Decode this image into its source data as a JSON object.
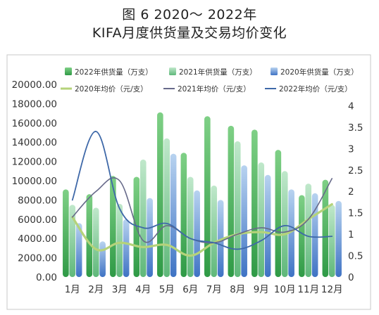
{
  "title": {
    "line1": "图 6  2020～ 2022年",
    "line2": "KIFA月度供货量及交易均价变化"
  },
  "chart_data": {
    "type": "bar",
    "categories": [
      "1月",
      "2月",
      "3月",
      "4月",
      "5月",
      "6月",
      "7月",
      "8月",
      "9月",
      "10月",
      "11月",
      "12月"
    ],
    "y_left": {
      "ylim": [
        0,
        20000
      ],
      "ticks": [
        "0.00",
        "2000.00",
        "4000.00",
        "6000.00",
        "8000.00",
        "10000.00",
        "12000.00",
        "14000.00",
        "16000.00",
        "18000.00",
        "20000.00"
      ]
    },
    "y_right": {
      "ylim": [
        0,
        4.5
      ],
      "ticks": [
        "0",
        "0.5",
        "1",
        "1.5",
        "2",
        "2.5",
        "3",
        "3.5",
        "4"
      ]
    },
    "bar_series": [
      {
        "name": "2022年供货量（万支）",
        "color": "#4fb858",
        "values": [
          9100,
          8600,
          10500,
          10400,
          17100,
          12900,
          16700,
          15700,
          15300,
          13200,
          8500,
          10100
        ]
      },
      {
        "name": "2021年供货量（万支）",
        "color": "#82cc96",
        "values": [
          7500,
          7200,
          7600,
          12200,
          14400,
          10400,
          9500,
          14100,
          11900,
          11000,
          9700,
          7500
        ]
      },
      {
        "name": "2020年供货量（万支）",
        "color": "#6d9ad8",
        "values": [
          5600,
          3700,
          6000,
          8200,
          12800,
          9000,
          8000,
          11600,
          10600,
          9100,
          8700,
          7900
        ]
      }
    ],
    "line_series": [
      {
        "name": "2020年均价（元/支）",
        "color": "#b5d37a",
        "values": [
          1.4,
          0.65,
          0.8,
          0.7,
          0.75,
          0.5,
          0.8,
          1.0,
          1.05,
          1.0,
          1.35,
          1.7
        ]
      },
      {
        "name": "2021年均价（元/支）",
        "color": "#676a8a",
        "values": [
          1.4,
          2.0,
          2.25,
          0.85,
          1.2,
          0.9,
          0.8,
          1.0,
          1.15,
          1.05,
          1.35,
          2.3
        ]
      },
      {
        "name": "2022年均价（元/支）",
        "color": "#3e68a8",
        "values": [
          1.8,
          3.4,
          1.6,
          1.15,
          1.25,
          0.9,
          0.8,
          0.65,
          0.85,
          1.2,
          0.95,
          0.95
        ]
      }
    ],
    "legend_position": "top",
    "grid": false
  }
}
